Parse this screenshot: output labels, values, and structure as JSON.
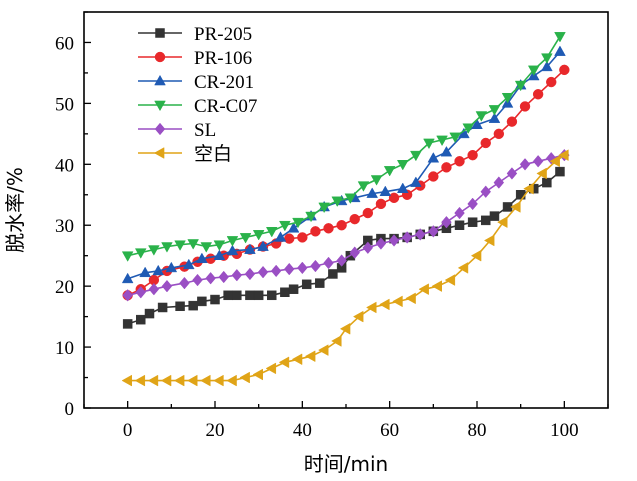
{
  "chart_data": {
    "type": "line",
    "xlabel": "时间/min",
    "ylabel": "脱水率/%",
    "xlim": [
      -10,
      110
    ],
    "ylim": [
      0,
      65
    ],
    "xticks": [
      0,
      20,
      40,
      60,
      80,
      100
    ],
    "yticks": [
      0,
      10,
      20,
      30,
      40,
      50,
      60
    ],
    "grid": false,
    "legend_position": "top-left",
    "series": [
      {
        "name": "PR-205",
        "color": "#333333",
        "marker": "square",
        "x": [
          0,
          3,
          5,
          8,
          12,
          15,
          17,
          20,
          23,
          25,
          28,
          30,
          33,
          36,
          38,
          41,
          44,
          47,
          49,
          51,
          55,
          58,
          61,
          64,
          67,
          70,
          73,
          76,
          79,
          82,
          84,
          87,
          90,
          93,
          96,
          99
        ],
        "y": [
          13.8,
          14.5,
          15.5,
          16.5,
          16.7,
          16.8,
          17.5,
          17.8,
          18.5,
          18.5,
          18.5,
          18.5,
          18.5,
          19.0,
          19.5,
          20.3,
          20.5,
          22.0,
          23.0,
          25.0,
          27.5,
          27.8,
          27.8,
          28.0,
          28.5,
          29.0,
          29.5,
          30.0,
          30.5,
          30.8,
          31.5,
          33.0,
          35.0,
          36.0,
          37.0,
          38.8
        ]
      },
      {
        "name": "PR-106",
        "color": "#e8282b",
        "marker": "circle",
        "x": [
          0,
          3,
          6,
          9,
          13,
          16,
          19,
          22,
          25,
          28,
          31,
          34,
          37,
          40,
          43,
          46,
          49,
          52,
          55,
          58,
          61,
          64,
          67,
          70,
          73,
          76,
          79,
          82,
          85,
          88,
          91,
          94,
          97,
          100
        ],
        "y": [
          18.5,
          19.5,
          21.0,
          22.5,
          23.2,
          24.0,
          24.5,
          25.0,
          25.3,
          26.0,
          26.5,
          27.0,
          27.8,
          28.0,
          29.0,
          29.5,
          30.0,
          31.0,
          32.0,
          33.5,
          34.5,
          35.0,
          36.5,
          38.0,
          39.5,
          40.5,
          41.5,
          43.5,
          45.0,
          47.0,
          49.5,
          51.5,
          53.5,
          55.5
        ]
      },
      {
        "name": "CR-201",
        "color": "#1f5ab4",
        "marker": "triangle-up",
        "x": [
          0,
          4,
          7,
          10,
          14,
          17,
          21,
          24,
          28,
          31,
          35,
          38,
          42,
          45,
          49,
          52,
          56,
          59,
          63,
          66,
          70,
          73,
          77,
          80,
          84,
          87,
          90,
          93,
          96,
          99
        ],
        "y": [
          21.2,
          22.2,
          22.5,
          23.0,
          23.5,
          24.5,
          25.0,
          25.8,
          26.0,
          26.5,
          28.0,
          29.5,
          31.5,
          33.0,
          34.0,
          34.5,
          35.2,
          35.5,
          36.0,
          37.0,
          41.0,
          42.0,
          45.0,
          46.5,
          47.5,
          50.0,
          53.0,
          54.5,
          56.0,
          58.5
        ]
      },
      {
        "name": "CR-C07",
        "color": "#2ab24a",
        "marker": "triangle-down",
        "x": [
          0,
          3,
          6,
          9,
          12,
          15,
          18,
          21,
          24,
          27,
          30,
          33,
          36,
          39,
          42,
          45,
          48,
          51,
          54,
          57,
          60,
          63,
          66,
          69,
          72,
          75,
          78,
          81,
          84,
          87,
          90,
          93,
          96,
          99
        ],
        "y": [
          25.0,
          25.5,
          26.0,
          26.5,
          26.8,
          27.0,
          26.5,
          26.8,
          27.5,
          28.0,
          28.5,
          29.0,
          30.0,
          30.5,
          31.5,
          33.0,
          34.0,
          34.5,
          36.5,
          37.5,
          39.0,
          40.0,
          41.5,
          43.5,
          44.0,
          44.5,
          46.0,
          48.0,
          49.0,
          51.0,
          53.0,
          55.5,
          57.5,
          61.0
        ]
      },
      {
        "name": "SL",
        "color": "#9a4fc4",
        "marker": "diamond",
        "x": [
          0,
          3,
          6,
          9,
          13,
          16,
          19,
          22,
          25,
          28,
          31,
          34,
          37,
          40,
          43,
          46,
          49,
          52,
          55,
          58,
          61,
          64,
          67,
          70,
          73,
          76,
          79,
          82,
          85,
          88,
          91,
          94,
          97,
          100
        ],
        "y": [
          18.5,
          19.0,
          19.5,
          20.0,
          20.5,
          21.0,
          21.3,
          21.5,
          21.8,
          22.0,
          22.3,
          22.5,
          22.8,
          23.0,
          23.3,
          23.8,
          24.2,
          25.5,
          26.3,
          27.0,
          27.5,
          28.0,
          28.5,
          29.0,
          30.5,
          32.0,
          33.5,
          35.5,
          37.0,
          38.5,
          40.0,
          40.5,
          41.0,
          41.5
        ]
      },
      {
        "name": "空白",
        "color": "#e0a417",
        "marker": "triangle-left",
        "x": [
          0,
          3,
          6,
          9,
          12,
          15,
          18,
          21,
          24,
          27,
          30,
          33,
          36,
          39,
          42,
          45,
          48,
          50,
          53,
          56,
          59,
          62,
          65,
          68,
          71,
          74,
          77,
          80,
          83,
          86,
          89,
          92,
          95,
          98,
          100
        ],
        "y": [
          4.5,
          4.5,
          4.5,
          4.5,
          4.5,
          4.5,
          4.5,
          4.5,
          4.5,
          5.0,
          5.5,
          6.5,
          7.5,
          8.0,
          8.5,
          9.5,
          11.0,
          13.0,
          15.0,
          16.5,
          17.0,
          17.5,
          18.0,
          19.5,
          20.0,
          21.0,
          23.0,
          25.0,
          27.5,
          30.5,
          33.0,
          36.0,
          38.5,
          40.5,
          41.5
        ]
      }
    ]
  }
}
